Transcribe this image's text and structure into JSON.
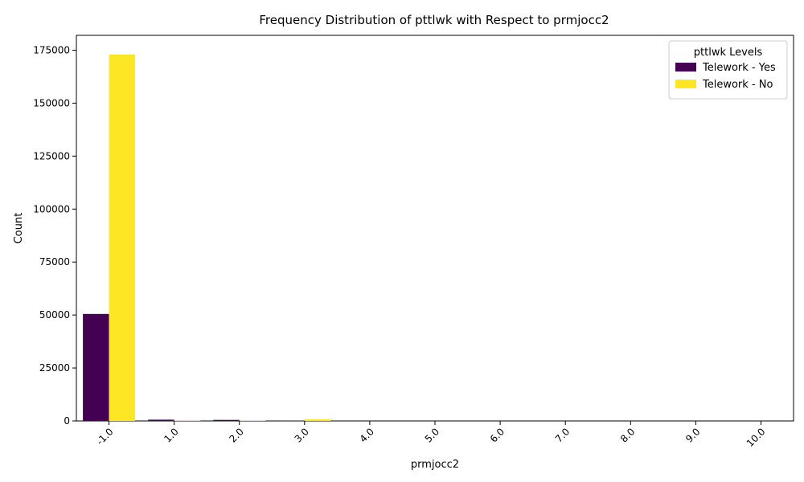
{
  "chart_data": {
    "type": "bar",
    "title": "Frequency Distribution of pttlwk with Respect to prmjocc2",
    "xlabel": "prmjocc2",
    "ylabel": "Count",
    "categories": [
      "-1.0",
      "1.0",
      "2.0",
      "3.0",
      "4.0",
      "5.0",
      "6.0",
      "7.0",
      "8.0",
      "9.0",
      "10.0"
    ],
    "series": [
      {
        "name": "Telework - Yes",
        "color": "#440154",
        "values": [
          50500,
          600,
          500,
          100,
          0,
          0,
          0,
          0,
          0,
          0,
          0
        ]
      },
      {
        "name": "Telework - No",
        "color": "#fde725",
        "values": [
          173000,
          400,
          350,
          800,
          0,
          0,
          0,
          0,
          0,
          0,
          0
        ]
      }
    ],
    "ylim": [
      0,
      182000
    ],
    "yticks": [
      0,
      25000,
      50000,
      75000,
      100000,
      125000,
      150000,
      175000
    ],
    "ytick_labels": [
      "0",
      "25000",
      "50000",
      "75000",
      "100000",
      "125000",
      "150000",
      "175000"
    ],
    "xtick_rotation": 45,
    "legend_title": "pttlwk Levels",
    "legend_position": "top-right",
    "grid": false
  }
}
